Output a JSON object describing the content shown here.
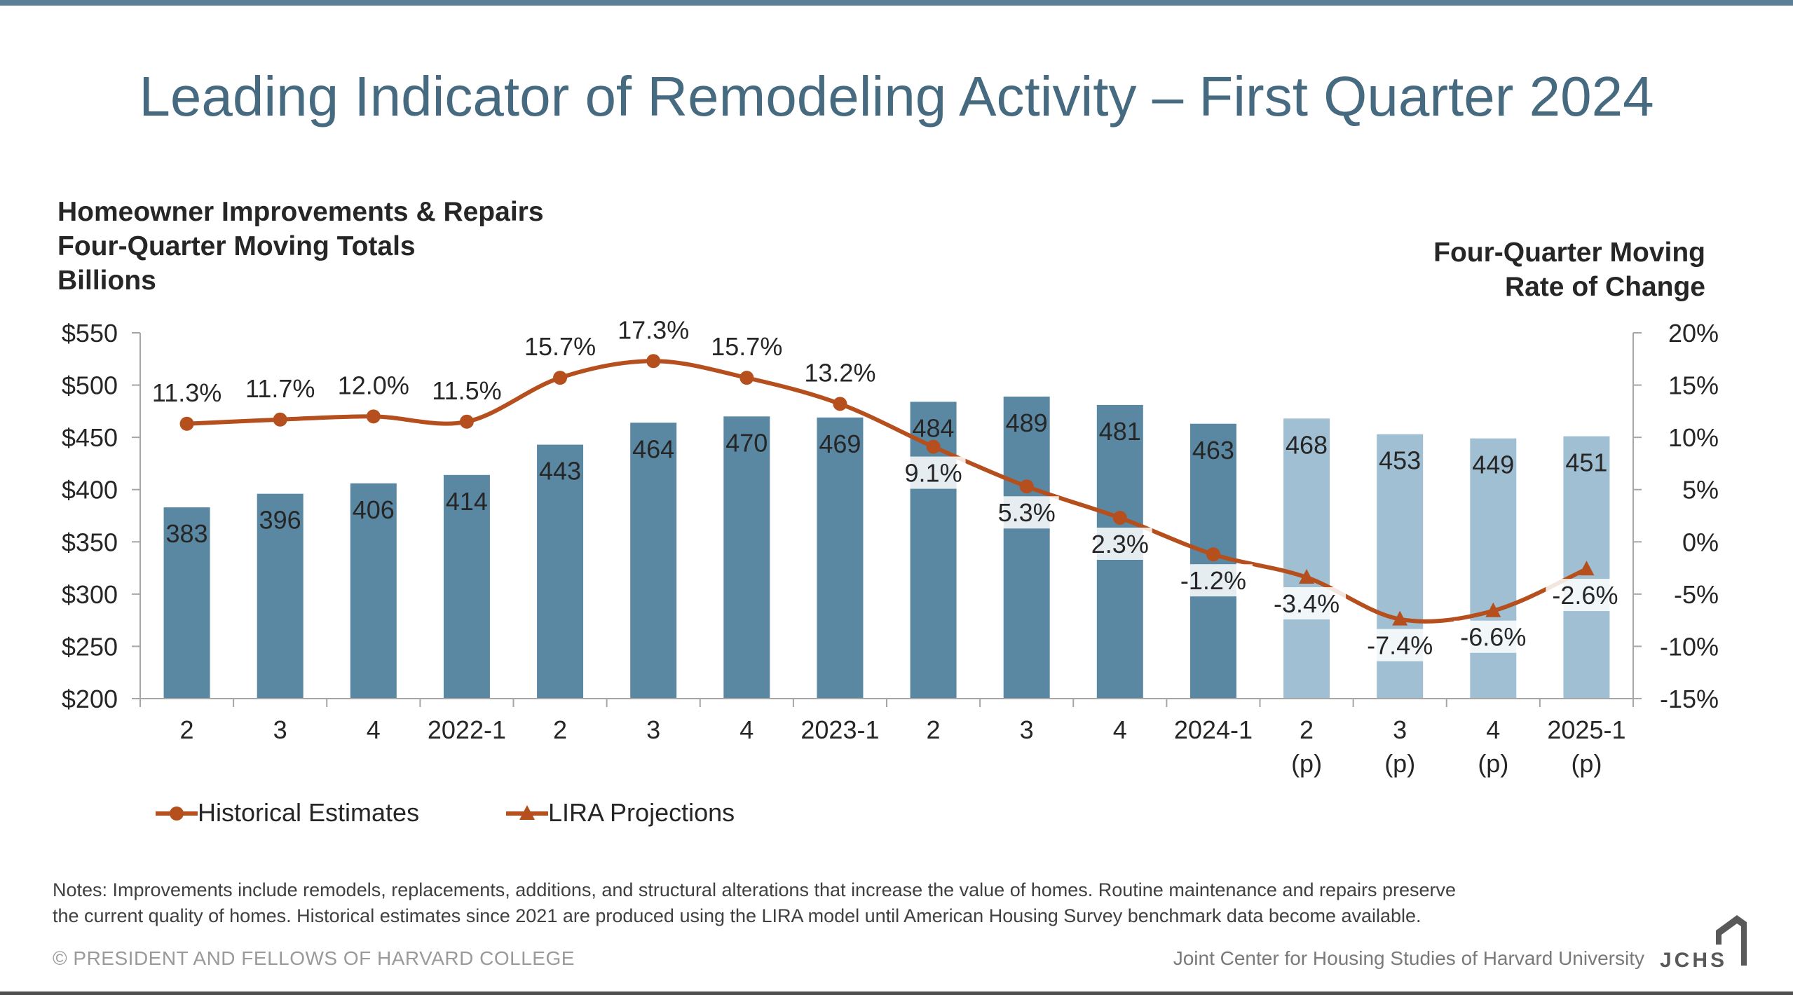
{
  "title": "Leading Indicator of Remodeling Activity – First Quarter 2024",
  "left_heading": {
    "line1": "Homeowner Improvements & Repairs",
    "line2": "Four-Quarter Moving Totals",
    "line3": "Billions"
  },
  "right_heading": {
    "line1": "Four-Quarter Moving",
    "line2": "Rate of Change"
  },
  "legend": {
    "historical": "Historical Estimates",
    "projections": "LIRA Projections"
  },
  "notes": {
    "line1": "Notes: Improvements include remodels, replacements, additions, and structural alterations that increase the value of homes. Routine maintenance and repairs preserve",
    "line2": "the current quality of homes. Historical estimates since 2021 are produced using the LIRA model until American Housing Survey benchmark data become available."
  },
  "footer": {
    "copyright": "© PRESIDENT AND FELLOWS OF HARVARD COLLEGE",
    "org": "Joint Center for Housing Studies of Harvard University",
    "logo": "JCHS"
  },
  "colors": {
    "bar_historical": "#5a88a3",
    "bar_projection": "#a1bfd2",
    "line": "#b5501e",
    "title": "#466a80"
  },
  "chart_data": {
    "type": "bar",
    "categories": [
      "2",
      "3",
      "4",
      "2022-1",
      "2",
      "3",
      "4",
      "2023-1",
      "2",
      "3",
      "4",
      "2024-1",
      "2\n(p)",
      "3\n(p)",
      "4\n(p)",
      "2025-1\n(p)"
    ],
    "bar_series": {
      "values": [
        383,
        396,
        406,
        414,
        443,
        464,
        470,
        469,
        484,
        489,
        481,
        463,
        468,
        453,
        449,
        451
      ],
      "projection": [
        false,
        false,
        false,
        false,
        false,
        false,
        false,
        false,
        false,
        false,
        false,
        false,
        true,
        true,
        true,
        true
      ]
    },
    "line_series": [
      {
        "name": "Historical Estimates",
        "marker": "circle",
        "values": [
          11.3,
          11.7,
          12.0,
          11.5,
          15.7,
          17.3,
          15.7,
          13.2,
          9.1,
          5.3,
          2.3,
          -1.2,
          null,
          null,
          null,
          null
        ],
        "labels": [
          "11.3%",
          "11.7%",
          "12.0%",
          "11.5%",
          "15.7%",
          "17.3%",
          "15.7%",
          "13.2%",
          "9.1%",
          "5.3%",
          "2.3%",
          "-1.2%",
          null,
          null,
          null,
          null
        ]
      },
      {
        "name": "LIRA Projections",
        "marker": "triangle",
        "values": [
          null,
          null,
          null,
          null,
          null,
          null,
          null,
          null,
          null,
          null,
          null,
          -1.2,
          -3.4,
          -7.4,
          -6.6,
          -2.6
        ],
        "labels": [
          null,
          null,
          null,
          null,
          null,
          null,
          null,
          null,
          null,
          null,
          null,
          null,
          "-3.4%",
          "-7.4%",
          "-6.6%",
          "-2.6%"
        ]
      }
    ],
    "y_left": {
      "min": 200,
      "max": 550,
      "step": 50,
      "ticks": [
        "$200",
        "$250",
        "$300",
        "$350",
        "$400",
        "$450",
        "$500",
        "$550"
      ]
    },
    "y_right": {
      "min": -15,
      "max": 20,
      "step": 5,
      "ticks": [
        "-15%",
        "-10%",
        "-5%",
        "0%",
        "5%",
        "10%",
        "15%",
        "20%"
      ]
    },
    "grid": false
  }
}
